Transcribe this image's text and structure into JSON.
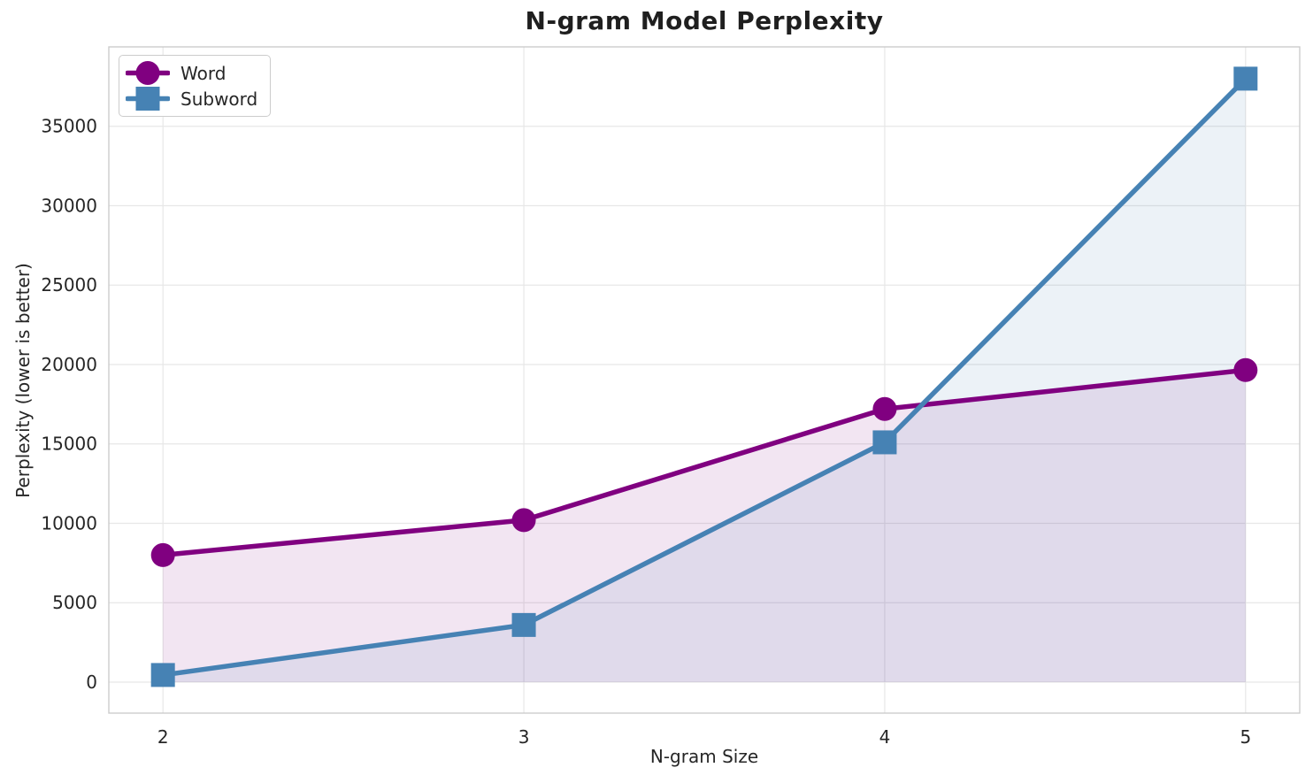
{
  "chart_data": {
    "type": "line",
    "title": "N-gram Model Perplexity",
    "xlabel": "N-gram Size",
    "ylabel": "Perplexity (lower is better)",
    "x": [
      2,
      3,
      4,
      5
    ],
    "series": [
      {
        "name": "Word",
        "marker": "circle",
        "color": "#800080",
        "values": [
          8000,
          10200,
          17200,
          19650
        ]
      },
      {
        "name": "Subword",
        "marker": "square",
        "color": "#4682B4",
        "values": [
          450,
          3600,
          15100,
          38000
        ]
      }
    ],
    "xticks": [
      2,
      3,
      4,
      5
    ],
    "yticks": [
      0,
      5000,
      10000,
      15000,
      20000,
      25000,
      30000,
      35000
    ],
    "xlim": [
      1.85,
      5.15
    ],
    "ylim": [
      -1950,
      40000
    ],
    "grid": true,
    "legend_position": "upper left",
    "area_fill": true,
    "fill_alpha": 0.1,
    "fill_baseline": 0,
    "grid_color": "#e7e7e7",
    "spine_color": "#cccccc",
    "tick_label_color": "#262626"
  }
}
